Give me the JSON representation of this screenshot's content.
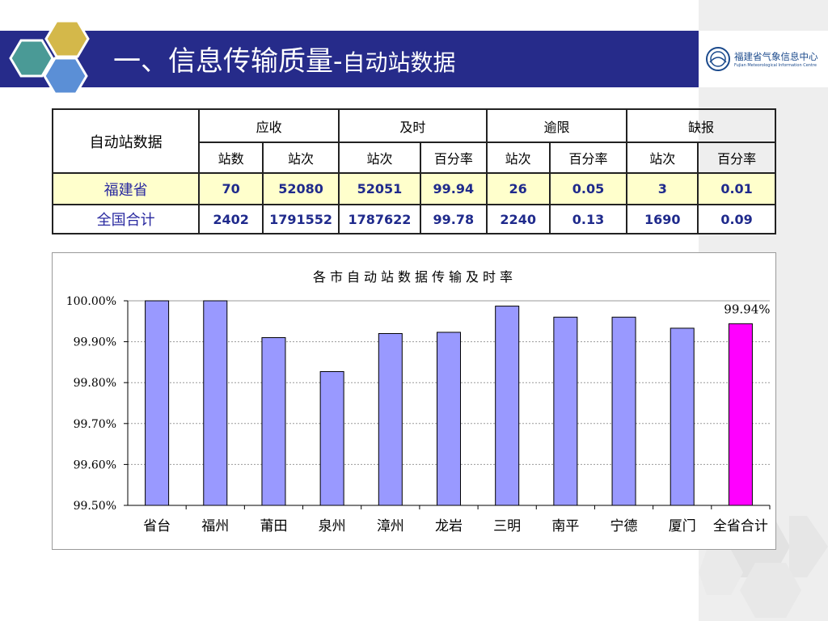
{
  "header": {
    "title_main": "一、信息传输质量-",
    "title_sub": "自动站数据",
    "logo_cn": "福建省气象信息中心",
    "logo_en": "Fujian Meteorological Information Centre"
  },
  "table": {
    "corner": "自动站数据",
    "groups": [
      "应收",
      "及时",
      "逾限",
      "缺报"
    ],
    "subheaders": [
      "站数",
      "站次",
      "站次",
      "百分率",
      "站次",
      "百分率",
      "站次",
      "百分率"
    ],
    "rows": [
      {
        "label": "福建省",
        "cells": [
          "70",
          "52080",
          "52051",
          "99.94",
          "26",
          "0.05",
          "3",
          "0.01"
        ]
      },
      {
        "label": "全国合计",
        "cells": [
          "2402",
          "1791552",
          "1787622",
          "99.78",
          "2240",
          "0.13",
          "1690",
          "0.09"
        ]
      }
    ]
  },
  "chart_data": {
    "type": "bar",
    "title": "各市自动站数据传输及时率",
    "categories": [
      "省台",
      "福州",
      "莆田",
      "泉州",
      "漳州",
      "龙岩",
      "三明",
      "南平",
      "宁德",
      "厦门",
      "全省合计"
    ],
    "values": [
      100.0,
      100.0,
      99.91,
      99.827,
      99.92,
      99.923,
      99.987,
      99.96,
      99.96,
      99.933,
      99.944
    ],
    "yticks": [
      "100.00%",
      "99.90%",
      "99.80%",
      "99.70%",
      "99.60%",
      "99.50%"
    ],
    "ylim": [
      99.5,
      100.0
    ],
    "grid": true,
    "data_labels": [
      {
        "category": "全省合计",
        "text": "99.94%"
      }
    ],
    "colors": {
      "bar": "#9999ff",
      "highlight": "#ff00ff"
    }
  }
}
